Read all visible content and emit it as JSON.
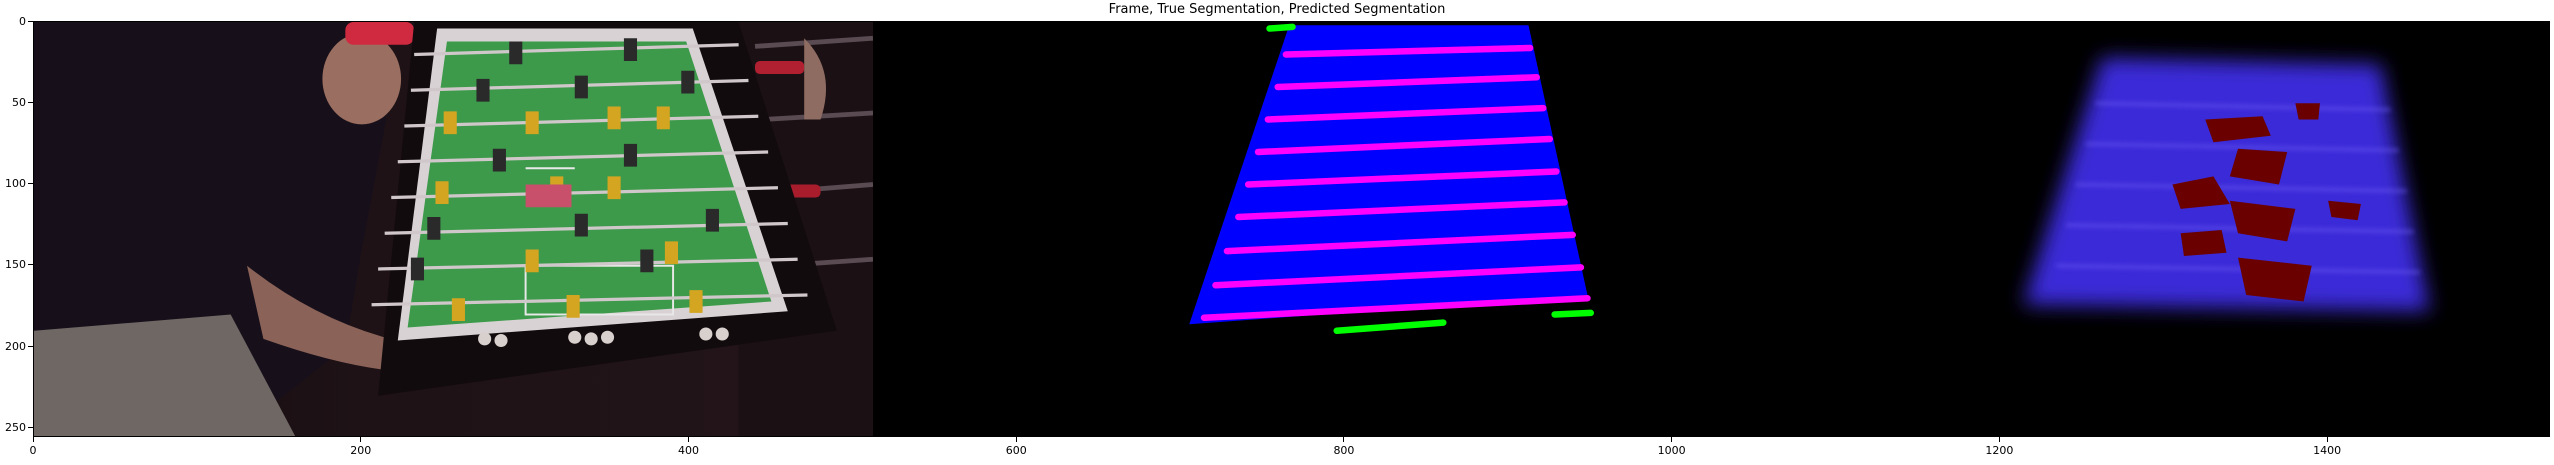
{
  "title": "Frame, True Segmentation, Predicted Segmentation",
  "axes": {
    "xlim": [
      0,
      1536
    ],
    "ylim": [
      256,
      0
    ],
    "xticks": [
      "0",
      "200",
      "400",
      "600",
      "800",
      "1000",
      "1200",
      "1400"
    ],
    "yticks": [
      "0",
      "50",
      "100",
      "150",
      "200",
      "250"
    ]
  },
  "panels": [
    {
      "name": "frame",
      "description_icon": "foosball-table-photo"
    },
    {
      "name": "true-segmentation",
      "description_icon": "segmentation-mask"
    },
    {
      "name": "predicted-segmentation",
      "description_icon": "predicted-mask"
    }
  ],
  "colors": {
    "field": "#0000ff",
    "rods": "#ff00ff",
    "goal-markers": "#00ff00",
    "prediction-field": "#3a2ad8",
    "prediction-blobs": "#6a0000",
    "table-green": "#3c9a4a"
  }
}
